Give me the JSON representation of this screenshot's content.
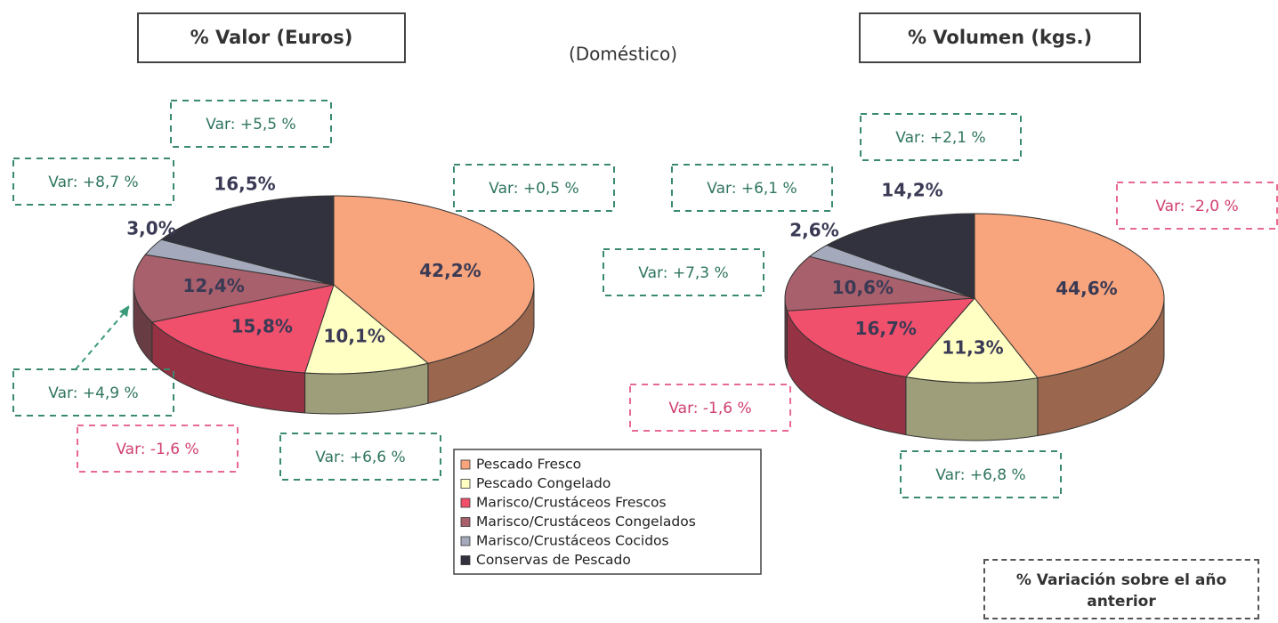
{
  "subtitle": "(Doméstico)",
  "note": "% Variación sobre el año anterior",
  "legend": {
    "categories": [
      "Pescado Fresco",
      "Pescado Congelado",
      "Marisco/Crustáceos Frescos",
      "Marisco/Crustáceos Congelados",
      "Marisco/Crustáceos Cocidos",
      "Conservas de Pescado"
    ],
    "colors": [
      "#f8a47c",
      "#ffffc4",
      "#f0506c",
      "#a8606c",
      "#a4aabb",
      "#32323f"
    ]
  },
  "chart_data": [
    {
      "type": "pie",
      "title": "% Valor (Euros)",
      "values": [
        42.2,
        10.1,
        15.8,
        12.4,
        3.0,
        16.5
      ],
      "value_labels": [
        "42,2%",
        "10,1%",
        "15,8%",
        "12,4%",
        "3,0%",
        "16,5%"
      ],
      "variations": [
        0.5,
        6.6,
        -1.6,
        4.9,
        8.7,
        5.5
      ],
      "variation_labels": [
        "Var: +0,5 %",
        "Var: +6,6 %",
        "Var: -1,6 %",
        "Var: +4,9 %",
        "Var: +8,7 %",
        "Var: +5,5 %"
      ]
    },
    {
      "type": "pie",
      "title": "% Volumen (kgs.)",
      "values": [
        44.6,
        11.3,
        16.7,
        10.6,
        2.6,
        14.2
      ],
      "value_labels": [
        "44,6%",
        "11,3%",
        "16,7%",
        "10,6%",
        "2,6%",
        "14,2%"
      ],
      "variations": [
        -2.0,
        6.8,
        -1.6,
        7.3,
        6.1,
        2.1
      ],
      "variation_labels": [
        "Var: -2,0 %",
        "Var: +6,8 %",
        "Var: -1,6 %",
        "Var: +7,3 %",
        "Var: +6,1 %",
        "Var: +2,1 %"
      ]
    }
  ]
}
